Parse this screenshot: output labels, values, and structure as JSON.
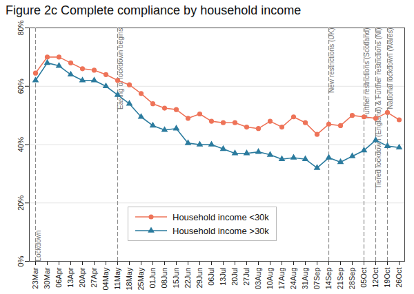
{
  "chart_data": {
    "type": "line",
    "title": "Figure 2c Complete compliance by household income",
    "x": [
      "23Mar",
      "30Mar",
      "06Apr",
      "13Apr",
      "20Apr",
      "27Apr",
      "04May",
      "11May",
      "18May",
      "25May",
      "01Jun",
      "08Jun",
      "15Jun",
      "22Jun",
      "29Jun",
      "06Jul",
      "13Jul",
      "20Jul",
      "27Jul",
      "03Aug",
      "10Aug",
      "17Aug",
      "24Aug",
      "31Aug",
      "07Sep",
      "14Sep",
      "21Sep",
      "28Sep",
      "05Oct",
      "12Oct",
      "19Oct",
      "26Oct"
    ],
    "series": [
      {
        "name": "Household income <30k",
        "color": "#ee7358",
        "marker": "circle",
        "values": [
          64.5,
          70,
          70,
          68,
          66,
          65.5,
          64,
          62,
          60.5,
          57.5,
          54,
          52.5,
          52,
          49,
          50.5,
          48,
          47.5,
          47.5,
          46,
          45.5,
          48,
          46,
          49.5,
          47.5,
          43.5,
          47,
          46.5,
          50,
          49.5,
          49,
          51,
          48.5
        ]
      },
      {
        "name": "Household income >30k",
        "color": "#2b7b9e",
        "marker": "triangle",
        "values": [
          62,
          68,
          67,
          64,
          62,
          62,
          60,
          57,
          54,
          49.5,
          46.5,
          45,
          45.5,
          40.5,
          40,
          40,
          38.5,
          37,
          37,
          37.5,
          36.5,
          35,
          35.5,
          35,
          32,
          35.5,
          34,
          36,
          38,
          41.5,
          39.5,
          39
        ]
      }
    ],
    "ylim": [
      0,
      80
    ],
    "yticks": [
      {
        "value": 0,
        "label": "0%"
      },
      {
        "value": 20,
        "label": "20%"
      },
      {
        "value": 40,
        "label": "40%"
      },
      {
        "value": 60,
        "label": "60%"
      },
      {
        "value": 80,
        "label": "80%"
      }
    ],
    "grid": true,
    "legend": "bottom",
    "annotations": [
      {
        "x": "23Mar",
        "text": "Lockdown"
      },
      {
        "x": "11May",
        "text": "Easing of lockdown begins"
      },
      {
        "x": "14Sep",
        "text": "New restrictions (UK)"
      },
      {
        "x": "05Oct",
        "text": "Further restrictions (Scotland)"
      },
      {
        "x": "12Oct",
        "text": "Tiered lockdown (England) & Further restrictions (NI)"
      },
      {
        "x": "19Oct",
        "text": "National lockdown (Wales)"
      }
    ]
  }
}
